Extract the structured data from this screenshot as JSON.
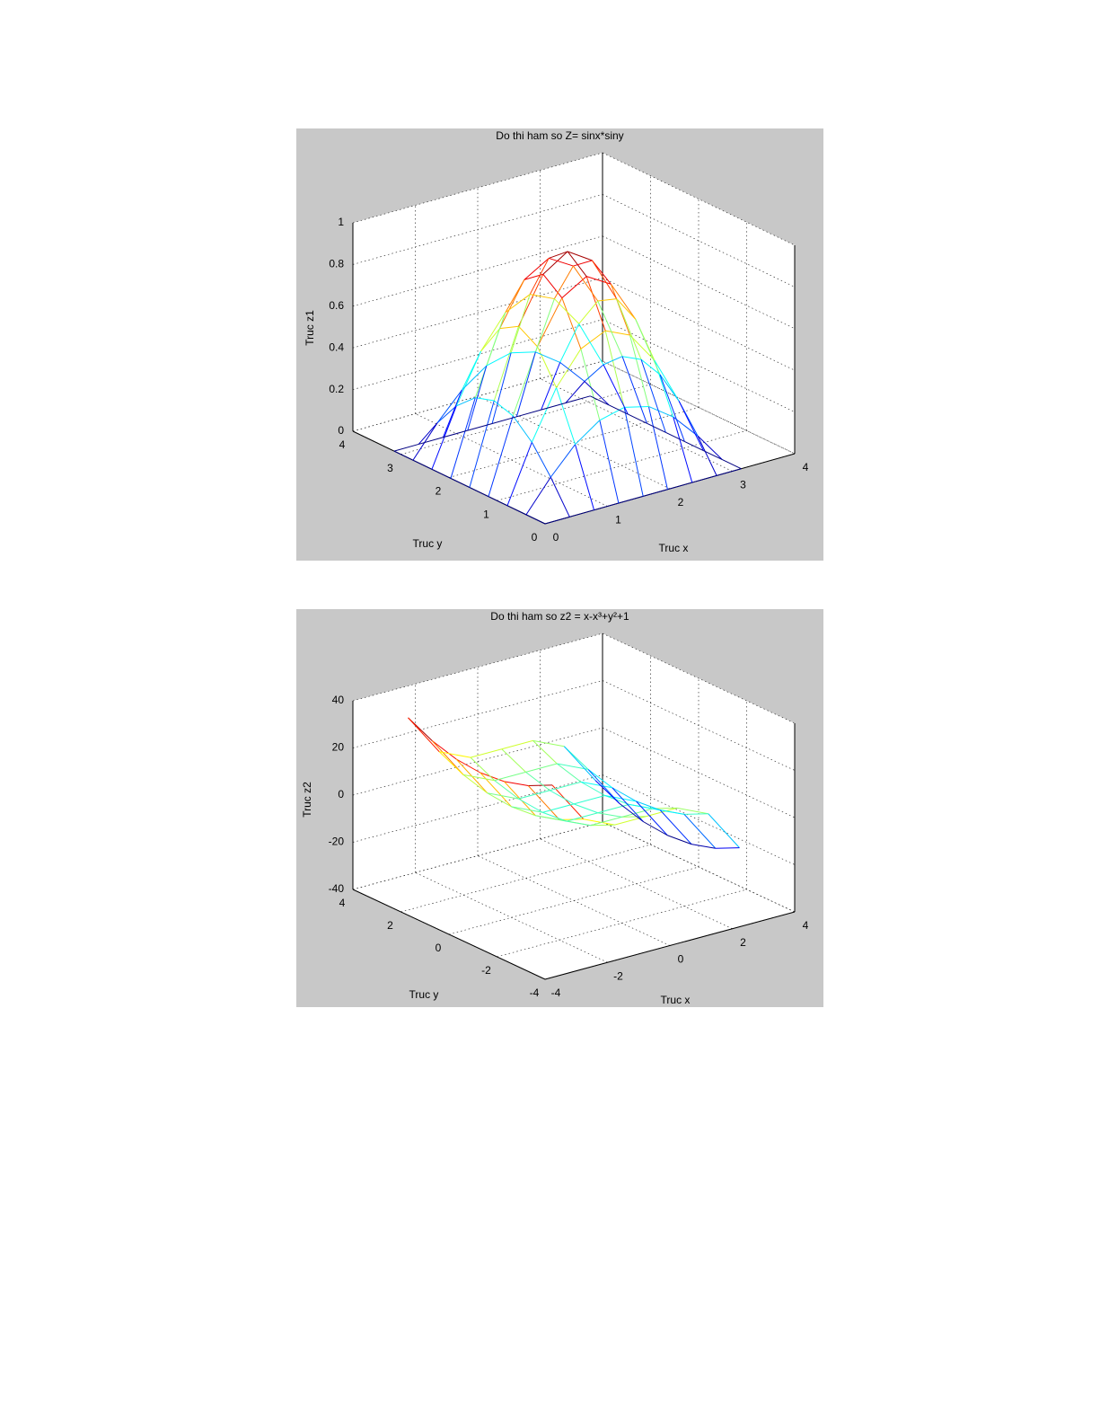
{
  "chart_data": [
    {
      "type": "mesh",
      "title": "Do thi ham so Z= sinx*siny",
      "xlabel": "Truc x",
      "ylabel": "Truc y",
      "zlabel": "Truc z1",
      "colormap": "jet",
      "grid": true,
      "xlim": [
        0,
        4
      ],
      "ylim": [
        0,
        4
      ],
      "zlim": [
        0,
        1
      ],
      "xticks": [
        0,
        1,
        2,
        3,
        4
      ],
      "yticks": [
        0,
        1,
        2,
        3,
        4
      ],
      "zticks": [
        0,
        0.2,
        0.4,
        0.6,
        0.8,
        1
      ],
      "x": [
        0,
        0.393,
        0.785,
        1.178,
        1.571,
        1.963,
        2.356,
        2.749,
        3.142
      ],
      "y": [
        0,
        0.393,
        0.785,
        1.178,
        1.571,
        1.963,
        2.356,
        2.749,
        3.142
      ],
      "z": [
        [
          0,
          0,
          0,
          0,
          0,
          0,
          0,
          0,
          0
        ],
        [
          0,
          0.147,
          0.271,
          0.354,
          0.383,
          0.354,
          0.271,
          0.147,
          0
        ],
        [
          0,
          0.271,
          0.5,
          0.653,
          0.707,
          0.653,
          0.5,
          0.271,
          0
        ],
        [
          0,
          0.354,
          0.653,
          0.854,
          0.924,
          0.854,
          0.653,
          0.354,
          0
        ],
        [
          0,
          0.383,
          0.707,
          0.924,
          1,
          0.924,
          0.707,
          0.383,
          0
        ],
        [
          0,
          0.354,
          0.653,
          0.854,
          0.924,
          0.854,
          0.653,
          0.354,
          0
        ],
        [
          0,
          0.271,
          0.5,
          0.653,
          0.707,
          0.653,
          0.5,
          0.271,
          0
        ],
        [
          0,
          0.147,
          0.271,
          0.354,
          0.383,
          0.354,
          0.271,
          0.147,
          0
        ],
        [
          0,
          0,
          0,
          0,
          0,
          0,
          0,
          0,
          0
        ]
      ]
    },
    {
      "type": "mesh",
      "title": "Do thi ham so  z2 = x-x³+y²+1",
      "xlabel": "Truc x",
      "ylabel": "Truc y",
      "zlabel": "Truc z2",
      "colormap": "jet",
      "grid": true,
      "xlim": [
        -4,
        4
      ],
      "ylim": [
        -4,
        4
      ],
      "zlim": [
        -40,
        40
      ],
      "xticks": [
        -4,
        -2,
        0,
        2,
        4
      ],
      "yticks": [
        -4,
        -2,
        0,
        2,
        4
      ],
      "zticks": [
        -40,
        -20,
        0,
        20,
        40
      ],
      "x": [
        -3,
        -2,
        -1,
        0,
        1,
        2,
        3
      ],
      "y": [
        -3,
        -2,
        -1,
        0,
        1,
        2,
        3
      ],
      "z": [
        [
          34,
          16,
          10,
          10,
          10,
          4,
          -14
        ],
        [
          29,
          11,
          5,
          5,
          5,
          -1,
          -19
        ],
        [
          26,
          8,
          2,
          2,
          2,
          -4,
          -22
        ],
        [
          25,
          7,
          1,
          1,
          1,
          -5,
          -23
        ],
        [
          26,
          8,
          2,
          2,
          2,
          -4,
          -22
        ],
        [
          29,
          11,
          5,
          5,
          5,
          -1,
          -19
        ],
        [
          34,
          16,
          10,
          10,
          10,
          4,
          -14
        ]
      ]
    }
  ]
}
